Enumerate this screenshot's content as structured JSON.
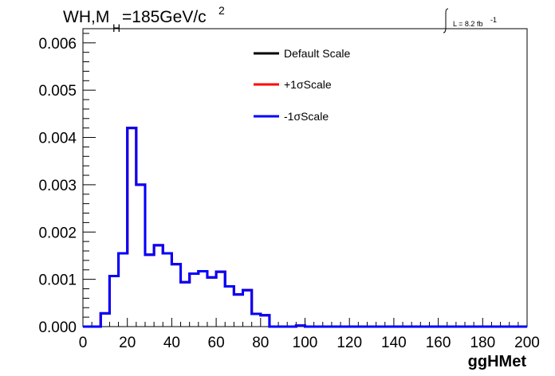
{
  "chart_data": {
    "type": "line",
    "title": {
      "main": "WH,M",
      "sub": "H",
      "rest": "=185GeV/c",
      "sup": "2"
    },
    "luminosity": {
      "label": "L = 8.2 fb",
      "sup": "-1"
    },
    "xlabel": "ggHMet",
    "ylabel": "",
    "xlim": [
      0,
      200
    ],
    "ylim": [
      0,
      0.0063
    ],
    "x_ticks": [
      "0",
      "20",
      "40",
      "60",
      "80",
      "100",
      "120",
      "140",
      "160",
      "180",
      "200"
    ],
    "y_ticks": [
      "0.000",
      "0.001",
      "0.002",
      "0.003",
      "0.004",
      "0.005",
      "0.006"
    ],
    "bin_width": 4,
    "bin_edges_start": 0,
    "legend_position": "top-center",
    "series": [
      {
        "name": "Default Scale",
        "color": "#000000",
        "values": [
          0,
          0,
          0.00028,
          0.00107,
          0.00155,
          0.0042,
          0.003,
          0.00152,
          0.00172,
          0.00155,
          0.00132,
          0.00094,
          0.00112,
          0.00117,
          0.00104,
          0.00116,
          0.00085,
          0.00068,
          0.00077,
          0.00027,
          0.00024,
          0,
          0,
          0,
          2e-05,
          0,
          0,
          0,
          0,
          0,
          0,
          0,
          0,
          0,
          0,
          0,
          0,
          0,
          0,
          0,
          0,
          0,
          0,
          0,
          0,
          0,
          0,
          0,
          0,
          0
        ]
      },
      {
        "name": "+1σScale",
        "color": "#ff0000",
        "values": [
          0,
          0,
          0.00028,
          0.00107,
          0.00155,
          0.0042,
          0.003,
          0.00152,
          0.00172,
          0.00155,
          0.00132,
          0.00094,
          0.00112,
          0.00117,
          0.00104,
          0.00116,
          0.00085,
          0.00068,
          0.00077,
          0.00027,
          0.00024,
          0,
          0,
          0,
          2e-05,
          0,
          0,
          0,
          0,
          0,
          0,
          0,
          0,
          0,
          0,
          0,
          0,
          0,
          0,
          0,
          0,
          0,
          0,
          0,
          0,
          0,
          0,
          0,
          0,
          0
        ]
      },
      {
        "name": "-1σScale",
        "color": "#0000ff",
        "values": [
          0,
          0,
          0.00028,
          0.00107,
          0.00155,
          0.0042,
          0.003,
          0.00152,
          0.00172,
          0.00155,
          0.00132,
          0.00094,
          0.00112,
          0.00117,
          0.00104,
          0.00116,
          0.00085,
          0.00068,
          0.00077,
          0.00027,
          0.00024,
          0,
          0,
          0,
          2e-05,
          0,
          0,
          0,
          0,
          0,
          0,
          0,
          0,
          0,
          0,
          0,
          0,
          0,
          0,
          0,
          0,
          0,
          0,
          0,
          0,
          0,
          0,
          0,
          0,
          0
        ]
      }
    ]
  }
}
